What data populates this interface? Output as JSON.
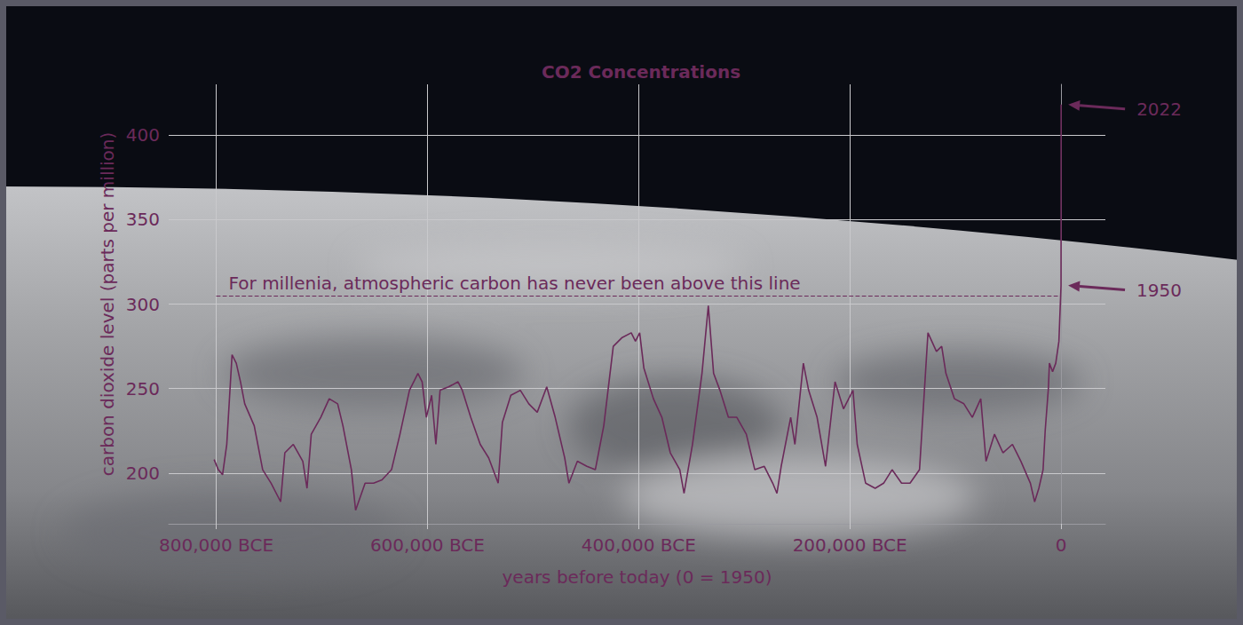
{
  "chart_data": {
    "type": "line",
    "title": "CO2 Concentrations",
    "x_label": "years before today (0 = 1950)",
    "y_label": "carbon dioxide level (parts per million)",
    "color": "#6b2a5a",
    "x": [
      -802000,
      -798000,
      -794000,
      -790000,
      -785000,
      -781000,
      -777000,
      -773000,
      -764000,
      -756000,
      -748000,
      -739000,
      -735000,
      -727000,
      -718000,
      -714000,
      -710000,
      -701000,
      -693000,
      -685000,
      -680000,
      -672000,
      -668000,
      -659000,
      -651000,
      -643000,
      -634000,
      -626000,
      -617000,
      -609000,
      -605000,
      -601000,
      -596000,
      -592000,
      -588000,
      -580000,
      -571000,
      -567000,
      -559000,
      -550000,
      -542000,
      -533000,
      -529000,
      -521000,
      -512000,
      -504000,
      -496000,
      -487000,
      -479000,
      -470000,
      -466000,
      -458000,
      -449000,
      -441000,
      -433000,
      -424000,
      -416000,
      -407000,
      -403000,
      -399000,
      -395000,
      -386000,
      -378000,
      -370000,
      -361000,
      -357000,
      -349000,
      -340000,
      -334000,
      -329000,
      -323000,
      -315000,
      -307000,
      -298000,
      -290000,
      -281000,
      -273000,
      -269000,
      -265000,
      -256000,
      -252000,
      -244000,
      -239000,
      -231000,
      -223000,
      -214000,
      -206000,
      -197000,
      -193000,
      -185000,
      -176000,
      -168000,
      -160000,
      -151000,
      -143000,
      -134000,
      -126000,
      -118000,
      -113000,
      -109000,
      -101000,
      -92000,
      -84000,
      -76000,
      -71000,
      -63000,
      -55000,
      -46000,
      -38000,
      -29000,
      -25000,
      -21000,
      -17000,
      -15000,
      -12000,
      -11000,
      -8000,
      -5000,
      -2000,
      0,
      30,
      50,
      72
    ],
    "values": [
      208,
      202,
      199,
      217,
      270,
      265,
      254,
      241,
      228,
      202,
      194,
      183,
      212,
      217,
      207,
      191,
      223,
      233,
      244,
      241,
      228,
      202,
      178,
      194,
      194,
      196,
      202,
      223,
      249,
      259,
      254,
      233,
      246,
      217,
      249,
      251,
      254,
      249,
      233,
      217,
      209,
      194,
      230,
      246,
      249,
      241,
      236,
      251,
      233,
      209,
      194,
      207,
      204,
      202,
      228,
      275,
      280,
      283,
      278,
      283,
      262,
      244,
      233,
      212,
      202,
      188,
      217,
      259,
      299,
      259,
      249,
      233,
      233,
      223,
      202,
      204,
      194,
      188,
      204,
      233,
      217,
      265,
      249,
      233,
      204,
      254,
      238,
      249,
      217,
      194,
      191,
      194,
      202,
      194,
      194,
      202,
      283,
      272,
      275,
      259,
      244,
      241,
      233,
      244,
      207,
      223,
      212,
      217,
      207,
      194,
      183,
      191,
      202,
      225,
      250,
      265,
      260,
      265,
      278,
      311,
      339,
      370,
      418
    ],
    "xlim": [
      -845000,
      42000
    ],
    "ylim": [
      170,
      430
    ],
    "xticks": [
      {
        "value": -800000,
        "label": "800,000 BCE"
      },
      {
        "value": -600000,
        "label": "600,000 BCE"
      },
      {
        "value": -400000,
        "label": "400,000 BCE"
      },
      {
        "value": -200000,
        "label": "200,000 BCE"
      },
      0
    ],
    "yticks": [
      200,
      250,
      300,
      350,
      400
    ],
    "grid": true,
    "reference_line": {
      "value": 305,
      "label": "For millenia, atmospheric carbon has never been above this line",
      "line_style": "dashed"
    },
    "annotations": [
      {
        "text": "2022",
        "x": 72,
        "y": 418
      },
      {
        "text": "1950",
        "x": 0,
        "y": 311
      }
    ]
  }
}
